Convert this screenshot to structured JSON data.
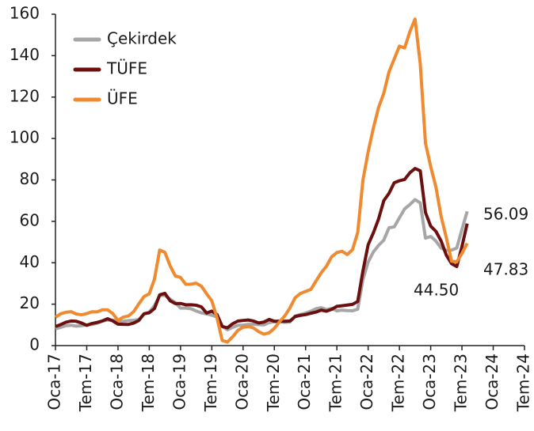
{
  "chart_data": {
    "type": "line",
    "xlim": [
      0,
      90
    ],
    "xticks": [
      {
        "value": 0,
        "label": "Oca-17"
      },
      {
        "value": 6,
        "label": "Tem-17"
      },
      {
        "value": 12,
        "label": "Oca-18"
      },
      {
        "value": 18,
        "label": "Tem-18"
      },
      {
        "value": 24,
        "label": "Oca-19"
      },
      {
        "value": 30,
        "label": "Tem-19"
      },
      {
        "value": 36,
        "label": "Oca-20"
      },
      {
        "value": 42,
        "label": "Tem-20"
      },
      {
        "value": 48,
        "label": "Oca-21"
      },
      {
        "value": 54,
        "label": "Tem-21"
      },
      {
        "value": 60,
        "label": "Oca-22"
      },
      {
        "value": 66,
        "label": "Tem-22"
      },
      {
        "value": 72,
        "label": "Oca-23"
      },
      {
        "value": 78,
        "label": "Tem-23"
      },
      {
        "value": 84,
        "label": "Oca-24"
      },
      {
        "value": 90,
        "label": "Tem-24"
      }
    ],
    "ylim": [
      0,
      160
    ],
    "yticks": [
      0,
      20,
      40,
      60,
      80,
      100,
      120,
      140,
      160
    ],
    "legend": "top-left",
    "series": [
      {
        "name": "Çekirdek",
        "color": "#a6a6a6",
        "values": [
          8.1,
          8.8,
          9.6,
          9.8,
          9.4,
          9.6,
          10.0,
          10.2,
          10.8,
          11.8,
          12.3,
          12.3,
          11.9,
          11.7,
          12.1,
          12.2,
          12.6,
          15.2,
          16.2,
          19.3,
          24.1,
          24.3,
          22.4,
          20.7,
          18.1,
          18.1,
          17.8,
          16.7,
          15.8,
          15.3,
          14.7,
          13.8,
          9.3,
          7.6,
          8.8,
          9.8,
          9.9,
          10.2,
          10.3,
          10.1,
          10.0,
          11.1,
          11.5,
          11.6,
          11.2,
          11.4,
          14.3,
          15.0,
          15.7,
          16.6,
          17.8,
          18.3,
          17.4,
          17.9,
          16.8,
          17.1,
          16.9,
          16.8,
          17.6,
          31.9,
          40.3,
          45.2,
          48.4,
          50.9,
          56.9,
          57.3,
          61.7,
          66.0,
          68.1,
          70.5,
          68.9,
          51.9,
          52.7,
          50.5,
          47.1,
          46.0,
          46.1,
          47.1,
          56.1,
          64.8
        ]
      },
      {
        "name": "TÜFE",
        "color": "#6b0f0f",
        "values": [
          9.22,
          10.13,
          11.29,
          11.87,
          11.72,
          10.9,
          9.79,
          10.68,
          11.2,
          11.9,
          12.98,
          11.92,
          10.35,
          10.26,
          10.23,
          10.85,
          12.15,
          15.39,
          15.85,
          17.9,
          24.52,
          25.24,
          21.62,
          20.3,
          20.35,
          19.67,
          19.71,
          19.5,
          18.71,
          15.72,
          16.65,
          15.01,
          9.26,
          8.55,
          10.56,
          11.84,
          12.15,
          12.37,
          11.86,
          10.94,
          11.39,
          12.62,
          11.76,
          11.77,
          11.75,
          11.89,
          14.03,
          14.6,
          14.97,
          15.61,
          16.19,
          17.14,
          16.59,
          17.53,
          18.95,
          19.25,
          19.58,
          19.89,
          21.31,
          36.08,
          48.69,
          54.44,
          61.14,
          69.97,
          73.5,
          78.62,
          79.6,
          80.21,
          83.45,
          85.51,
          84.39,
          64.27,
          57.68,
          55.18,
          50.51,
          43.68,
          39.59,
          38.21,
          47.83,
          58.94
        ]
      },
      {
        "name": "ÜFE",
        "color": "#f08a30",
        "values": [
          13.69,
          15.36,
          16.09,
          16.37,
          15.26,
          14.87,
          15.45,
          16.34,
          16.28,
          17.28,
          17.3,
          15.47,
          12.14,
          13.71,
          14.28,
          16.37,
          20.16,
          23.71,
          25.0,
          32.13,
          46.15,
          45.01,
          38.54,
          33.64,
          32.93,
          29.58,
          29.64,
          30.12,
          28.71,
          25.04,
          21.66,
          13.45,
          2.45,
          1.7,
          4.26,
          7.36,
          8.84,
          9.26,
          8.5,
          6.71,
          5.53,
          6.17,
          8.33,
          11.53,
          14.33,
          18.2,
          23.11,
          25.15,
          26.16,
          27.09,
          31.2,
          35.17,
          38.33,
          42.89,
          44.92,
          45.52,
          43.96,
          46.31,
          54.62,
          79.89,
          93.53,
          105.01,
          114.97,
          121.82,
          132.16,
          138.31,
          144.61,
          143.75,
          151.5,
          157.69,
          136.02,
          97.72,
          86.46,
          76.61,
          62.43,
          52.11,
          40.76,
          40.42,
          44.5,
          49.41
        ]
      }
    ],
    "annotations": [
      "56.09",
      "47.83",
      "44.50"
    ]
  }
}
